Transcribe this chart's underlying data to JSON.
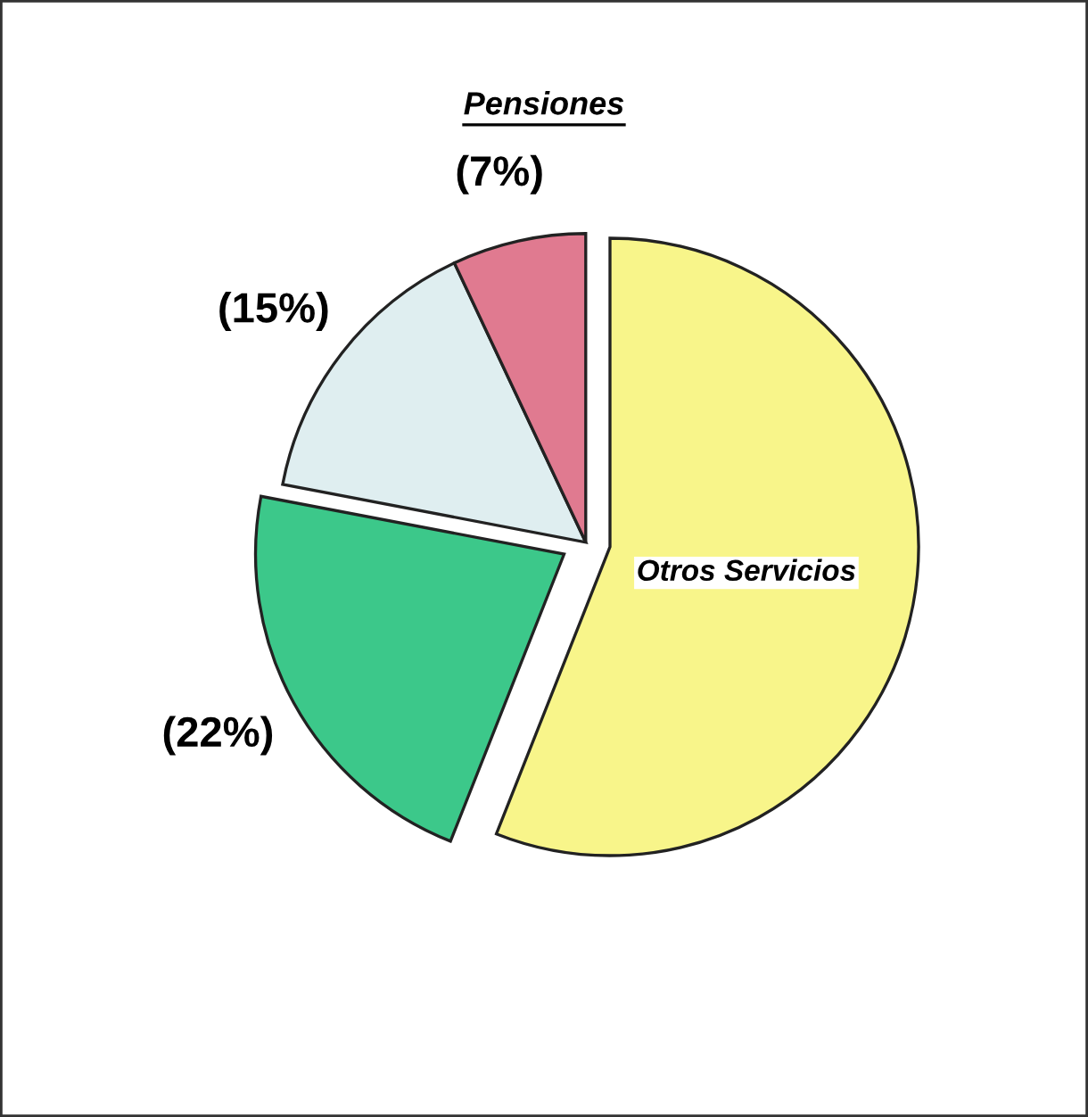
{
  "chart_data": {
    "type": "pie",
    "title": "Pensiones",
    "categories": [
      "Otros Servicios",
      null,
      null,
      null
    ],
    "values": [
      56,
      22,
      15,
      7
    ],
    "colors": [
      "#f8f58a",
      "#3cc88a",
      "#dfeef0",
      "#e07a90"
    ],
    "value_labels": [
      null,
      "(22%)",
      "(15%)",
      "(7%)"
    ]
  }
}
